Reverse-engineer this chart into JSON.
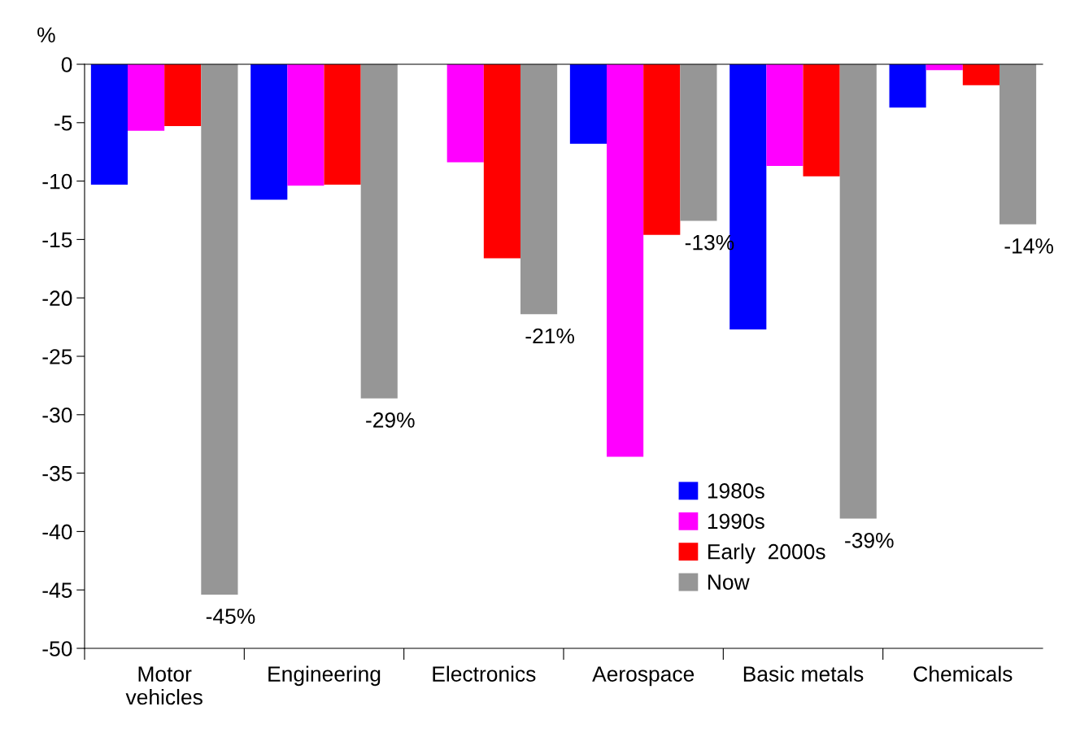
{
  "chart_data": {
    "type": "bar",
    "ylabel": "%",
    "categories": [
      "Motor\nvehicles",
      "Engineering",
      "Electronics",
      "Aerospace",
      "Basic metals",
      "Chemicals"
    ],
    "series": [
      {
        "name": "1980s",
        "color": "#0000ff",
        "values": [
          -10.3,
          -11.6,
          null,
          -6.8,
          -22.7,
          -3.7
        ]
      },
      {
        "name": "1990s",
        "color": "#ff00ff",
        "values": [
          -5.7,
          -10.4,
          -8.4,
          -33.6,
          -8.7,
          -0.5
        ]
      },
      {
        "name": "Early  2000s",
        "color": "#ff0000",
        "values": [
          -5.3,
          -10.3,
          -16.6,
          -14.6,
          -9.6,
          -1.8
        ]
      },
      {
        "name": "Now",
        "color": "#969696",
        "values": [
          -45.4,
          -28.6,
          -21.4,
          -13.4,
          -38.9,
          -13.7
        ],
        "value_labels": [
          "-45%",
          "-29%",
          "-21%",
          "-13%",
          "-39%",
          "-14%"
        ]
      }
    ],
    "ylim": [
      -50,
      0
    ],
    "yticks": [
      -50,
      -45,
      -40,
      -35,
      -30,
      -25,
      -20,
      -15,
      -10,
      -5,
      0
    ],
    "grid": false,
    "legend": "bottom right"
  }
}
